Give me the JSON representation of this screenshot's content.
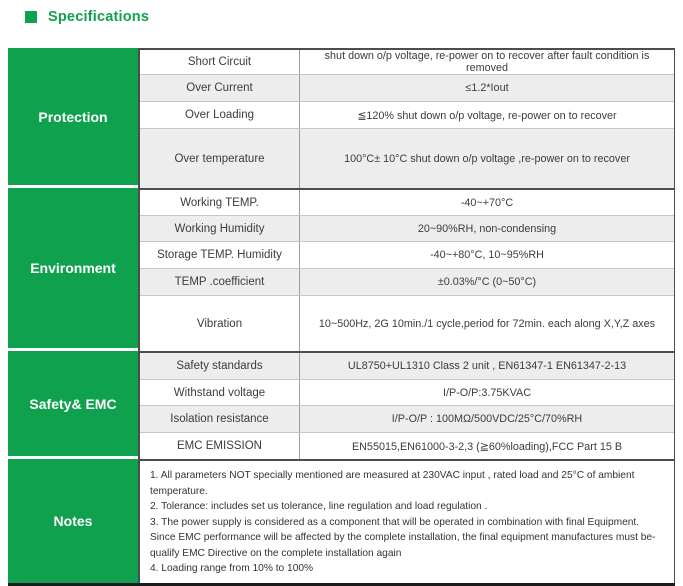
{
  "header": {
    "title": "Specifications",
    "bullet_icon": "green-square-icon"
  },
  "colors": {
    "accent_green": "#10A14E",
    "row_alt_gray": "#EDEDED",
    "border_dark": "#4D4D4D",
    "border_light": "#C6C6C6"
  },
  "table": {
    "groups": [
      {
        "name": "Protection",
        "rows": [
          {
            "label": "Short Circuit",
            "value": "shut down o/p voltage, re-power on to recover after fault condition is removed"
          },
          {
            "label": "Over Current",
            "value": "≤1.2*Iout"
          },
          {
            "label": "Over Loading",
            "value": "≦120% shut down o/p voltage, re-power on to recover"
          },
          {
            "label": "Over temperature",
            "value": "100°C± 10°C shut down o/p voltage ,re-power on to recover"
          }
        ]
      },
      {
        "name": "Environment",
        "rows": [
          {
            "label": "Working TEMP.",
            "value": "-40~+70°C"
          },
          {
            "label": "Working Humidity",
            "value": "20~90%RH, non-condensing"
          },
          {
            "label": "Storage TEMP. Humidity",
            "value": "-40~+80°C,  10~95%RH"
          },
          {
            "label": "TEMP .coefficient",
            "value": "±0.03%/°C  (0~50°C)"
          },
          {
            "label": "Vibration",
            "value": "10~500Hz,  2G 10min./1 cycle,period for 72min. each along X,Y,Z axes"
          }
        ]
      },
      {
        "name": "Safety& EMC",
        "rows": [
          {
            "label": "Safety standards",
            "value": "UL8750+UL1310 Class 2 unit , EN61347-1 EN61347-2-13"
          },
          {
            "label": "Withstand voltage",
            "value": "I/P-O/P:3.75KVAC"
          },
          {
            "label": "Isolation resistance",
            "value": "I/P-O/P :  100MΩ/500VDC/25°C/70%RH"
          },
          {
            "label": "EMC EMISSION",
            "value": "EN55015,EN61000-3-2,3 (≧60%loading),FCC Part 15 B"
          }
        ]
      }
    ],
    "notes": {
      "name": "Notes",
      "lines": [
        "1. All parameters NOT specially mentioned are measured at 230VAC input , rated load and 25°C of ambient temperature.",
        "2. Tolerance: includes set us tolerance, line regulation and load regulation .",
        "3. The power supply is considered as a component that will be operated in combination with final Equipment. Since EMC performance will be affected by the complete installation, the final  equipment manufactures must be-qualify EMC Directive on the complete installation again",
        "4. Loading range from 10% to 100%"
      ]
    }
  }
}
